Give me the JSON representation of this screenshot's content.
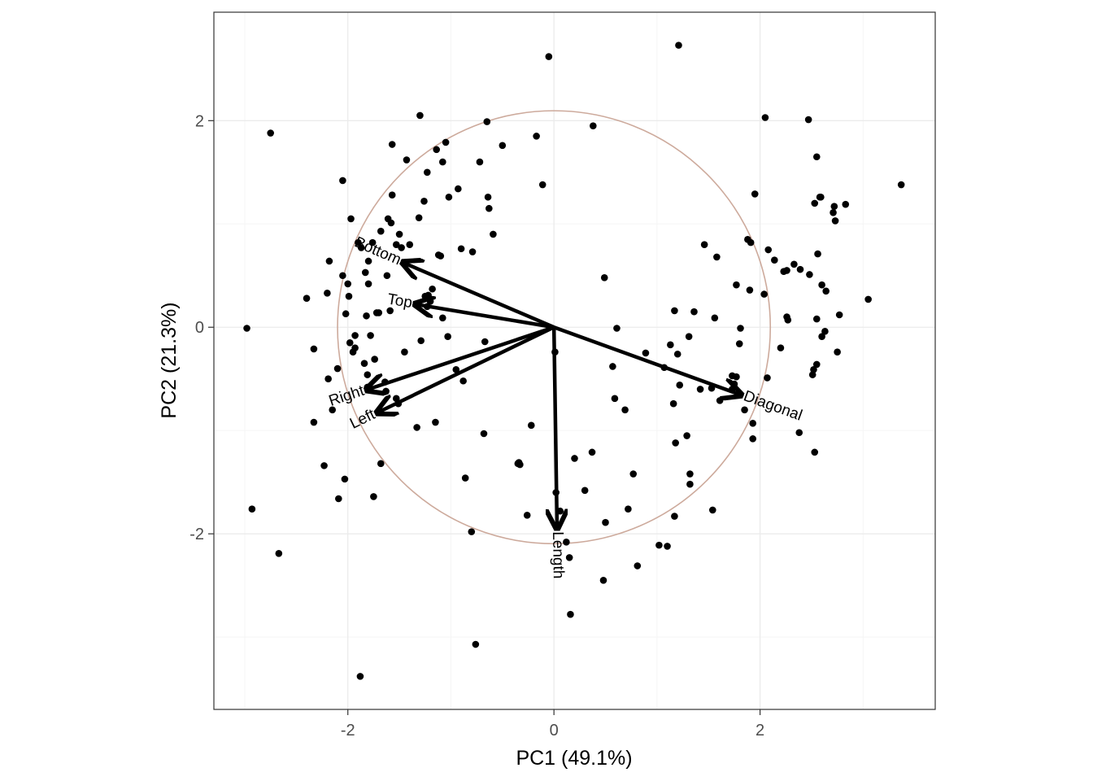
{
  "chart_data": {
    "type": "scatter",
    "subtype": "pca-biplot",
    "xlabel": "PC1 (49.1%)",
    "ylabel": "PC2 (21.3%)",
    "xlim": [
      -3.3,
      3.7
    ],
    "ylim": [
      -3.7,
      3.05
    ],
    "x_ticks": [
      {
        "value": -2,
        "label": "-2"
      },
      {
        "value": 0,
        "label": "0"
      },
      {
        "value": 2,
        "label": "2"
      }
    ],
    "y_ticks": [
      {
        "value": -2,
        "label": "-2"
      },
      {
        "value": 0,
        "label": "0"
      },
      {
        "value": 2,
        "label": "2"
      }
    ],
    "grid": true,
    "circle": {
      "cx": 0,
      "cy": 0,
      "r": 2.1,
      "color": "#cdaa9c"
    },
    "colors": {
      "points": "#000000",
      "arrows": "#000000",
      "grid_major": "#ebebeb",
      "grid_minor": "#f5f5f5",
      "panel_border": "#333333"
    },
    "arrows": [
      {
        "label": "Length",
        "x": 0.03,
        "y": -1.93
      },
      {
        "label": "Left",
        "x": -1.7,
        "y": -0.82
      },
      {
        "label": "Right",
        "x": -1.8,
        "y": -0.6
      },
      {
        "label": "Bottom",
        "x": -1.45,
        "y": 0.62
      },
      {
        "label": "Top",
        "x": -1.33,
        "y": 0.22
      },
      {
        "label": "Diagonal",
        "x": 1.8,
        "y": -0.65
      }
    ],
    "points": [
      [
        -2.98,
        -0.01
      ],
      [
        -2.93,
        -1.76
      ],
      [
        -2.75,
        1.88
      ],
      [
        -2.67,
        -2.19
      ],
      [
        -2.4,
        0.28
      ],
      [
        -2.33,
        -0.21
      ],
      [
        -2.33,
        -0.92
      ],
      [
        -2.23,
        -1.34
      ],
      [
        -2.2,
        0.33
      ],
      [
        -2.19,
        -0.5
      ],
      [
        -2.18,
        0.64
      ],
      [
        -2.15,
        -0.8
      ],
      [
        -2.1,
        -0.4
      ],
      [
        -2.09,
        -1.66
      ],
      [
        -2.05,
        1.42
      ],
      [
        -2.05,
        0.5
      ],
      [
        -2.03,
        -1.47
      ],
      [
        -2.02,
        0.13
      ],
      [
        -2.0,
        0.42
      ],
      [
        -1.99,
        0.3
      ],
      [
        -1.98,
        -0.15
      ],
      [
        -1.97,
        1.05
      ],
      [
        -1.95,
        -0.24
      ],
      [
        -1.93,
        -0.2
      ],
      [
        -1.93,
        -0.08
      ],
      [
        -1.9,
        0.82
      ],
      [
        -1.88,
        -3.38
      ],
      [
        -1.87,
        0.77
      ],
      [
        -1.84,
        -0.35
      ],
      [
        -1.83,
        0.53
      ],
      [
        -1.82,
        0.11
      ],
      [
        -1.81,
        -0.46
      ],
      [
        -1.81,
        -0.58
      ],
      [
        -1.8,
        0.42
      ],
      [
        -1.8,
        0.64
      ],
      [
        -1.78,
        -0.08
      ],
      [
        -1.76,
        0.82
      ],
      [
        -1.75,
        -1.64
      ],
      [
        -1.74,
        -0.31
      ],
      [
        -1.72,
        0.14
      ],
      [
        -1.7,
        0.14
      ],
      [
        -1.68,
        -1.32
      ],
      [
        -1.68,
        0.93
      ],
      [
        -1.64,
        -0.53
      ],
      [
        -1.63,
        -0.62
      ],
      [
        -1.62,
        0.5
      ],
      [
        -1.61,
        1.05
      ],
      [
        -1.59,
        0.16
      ],
      [
        -1.58,
        1.01
      ],
      [
        -1.57,
        1.28
      ],
      [
        -1.57,
        1.77
      ],
      [
        -1.53,
        -0.69
      ],
      [
        -1.53,
        0.8
      ],
      [
        -1.51,
        -0.74
      ],
      [
        -1.5,
        0.9
      ],
      [
        -1.48,
        0.77
      ],
      [
        -1.45,
        -0.24
      ],
      [
        -1.43,
        1.62
      ],
      [
        -1.4,
        0.8
      ],
      [
        -1.33,
        -0.97
      ],
      [
        -1.31,
        1.06
      ],
      [
        -1.3,
        2.05
      ],
      [
        -1.29,
        -0.13
      ],
      [
        -1.26,
        1.22
      ],
      [
        -1.25,
        0.3
      ],
      [
        -1.23,
        0.2
      ],
      [
        -1.23,
        1.5
      ],
      [
        -1.22,
        0.31
      ],
      [
        -1.2,
        0.25
      ],
      [
        -1.18,
        0.37
      ],
      [
        -1.15,
        -0.92
      ],
      [
        -1.14,
        1.72
      ],
      [
        -1.12,
        0.7
      ],
      [
        -1.1,
        0.69
      ],
      [
        -1.08,
        0.09
      ],
      [
        -1.08,
        1.6
      ],
      [
        -1.05,
        1.79
      ],
      [
        -1.03,
        -0.09
      ],
      [
        -1.02,
        1.26
      ],
      [
        -0.95,
        -0.41
      ],
      [
        -0.93,
        1.34
      ],
      [
        -0.9,
        0.76
      ],
      [
        -0.88,
        -0.52
      ],
      [
        -0.86,
        -1.46
      ],
      [
        -0.8,
        -1.98
      ],
      [
        -0.79,
        0.73
      ],
      [
        -0.76,
        -3.07
      ],
      [
        -0.72,
        1.6
      ],
      [
        -0.68,
        -1.03
      ],
      [
        -0.67,
        -0.14
      ],
      [
        -0.65,
        1.99
      ],
      [
        -0.64,
        1.26
      ],
      [
        -0.63,
        1.15
      ],
      [
        -0.59,
        0.9
      ],
      [
        -0.5,
        1.76
      ],
      [
        -0.35,
        -1.32
      ],
      [
        -0.34,
        -1.31
      ],
      [
        -0.33,
        -1.33
      ],
      [
        -0.26,
        -1.82
      ],
      [
        -0.22,
        -0.95
      ],
      [
        -0.17,
        1.85
      ],
      [
        -0.11,
        1.38
      ],
      [
        -0.05,
        2.62
      ],
      [
        0.01,
        -0.24
      ],
      [
        0.02,
        -1.6
      ],
      [
        0.06,
        -1.78
      ],
      [
        0.12,
        -2.08
      ],
      [
        0.15,
        -2.23
      ],
      [
        0.16,
        -2.78
      ],
      [
        0.2,
        -1.27
      ],
      [
        0.3,
        -1.58
      ],
      [
        0.37,
        -1.21
      ],
      [
        0.38,
        1.95
      ],
      [
        0.48,
        -2.45
      ],
      [
        0.49,
        0.48
      ],
      [
        0.5,
        -1.89
      ],
      [
        0.57,
        -0.38
      ],
      [
        0.59,
        -0.69
      ],
      [
        0.61,
        -0.01
      ],
      [
        0.69,
        -0.8
      ],
      [
        0.72,
        -1.76
      ],
      [
        0.77,
        -1.42
      ],
      [
        0.81,
        -2.31
      ],
      [
        0.89,
        -0.25
      ],
      [
        1.02,
        -2.11
      ],
      [
        1.07,
        -0.39
      ],
      [
        1.1,
        -2.12
      ],
      [
        1.13,
        -0.17
      ],
      [
        1.16,
        -0.74
      ],
      [
        1.17,
        0.16
      ],
      [
        1.17,
        -1.83
      ],
      [
        1.18,
        -1.12
      ],
      [
        1.2,
        -0.26
      ],
      [
        1.21,
        2.73
      ],
      [
        1.22,
        -0.56
      ],
      [
        1.29,
        -1.05
      ],
      [
        1.31,
        -0.09
      ],
      [
        1.32,
        -1.42
      ],
      [
        1.32,
        -1.52
      ],
      [
        1.36,
        0.15
      ],
      [
        1.42,
        -0.6
      ],
      [
        1.46,
        0.8
      ],
      [
        1.53,
        -0.59
      ],
      [
        1.54,
        -1.77
      ],
      [
        1.56,
        0.09
      ],
      [
        1.58,
        0.68
      ],
      [
        1.61,
        -0.71
      ],
      [
        1.73,
        -0.47
      ],
      [
        1.73,
        -0.6
      ],
      [
        1.75,
        -0.55
      ],
      [
        1.77,
        0.41
      ],
      [
        1.77,
        -0.48
      ],
      [
        1.8,
        -0.16
      ],
      [
        1.81,
        -0.01
      ],
      [
        1.85,
        -0.8
      ],
      [
        1.88,
        0.85
      ],
      [
        1.9,
        0.36
      ],
      [
        1.91,
        0.82
      ],
      [
        1.93,
        -0.93
      ],
      [
        1.93,
        -1.08
      ],
      [
        1.95,
        1.29
      ],
      [
        2.04,
        0.32
      ],
      [
        2.05,
        2.03
      ],
      [
        2.07,
        -0.49
      ],
      [
        2.08,
        0.75
      ],
      [
        2.14,
        0.65
      ],
      [
        2.2,
        -0.2
      ],
      [
        2.23,
        0.54
      ],
      [
        2.26,
        0.1
      ],
      [
        2.26,
        0.55
      ],
      [
        2.27,
        0.07
      ],
      [
        2.33,
        0.61
      ],
      [
        2.38,
        -1.02
      ],
      [
        2.39,
        0.56
      ],
      [
        2.47,
        2.01
      ],
      [
        2.48,
        0.51
      ],
      [
        2.51,
        -0.46
      ],
      [
        2.52,
        -0.41
      ],
      [
        2.53,
        1.2
      ],
      [
        2.53,
        -1.21
      ],
      [
        2.55,
        -0.36
      ],
      [
        2.55,
        1.65
      ],
      [
        2.55,
        0.08
      ],
      [
        2.56,
        0.71
      ],
      [
        2.58,
        1.26
      ],
      [
        2.59,
        1.26
      ],
      [
        2.6,
        -0.09
      ],
      [
        2.6,
        0.41
      ],
      [
        2.63,
        -0.04
      ],
      [
        2.64,
        0.35
      ],
      [
        2.71,
        1.11
      ],
      [
        2.72,
        1.17
      ],
      [
        2.73,
        1.03
      ],
      [
        2.75,
        -0.24
      ],
      [
        2.77,
        0.12
      ],
      [
        2.83,
        1.19
      ],
      [
        3.05,
        0.27
      ],
      [
        3.37,
        1.38
      ]
    ]
  }
}
